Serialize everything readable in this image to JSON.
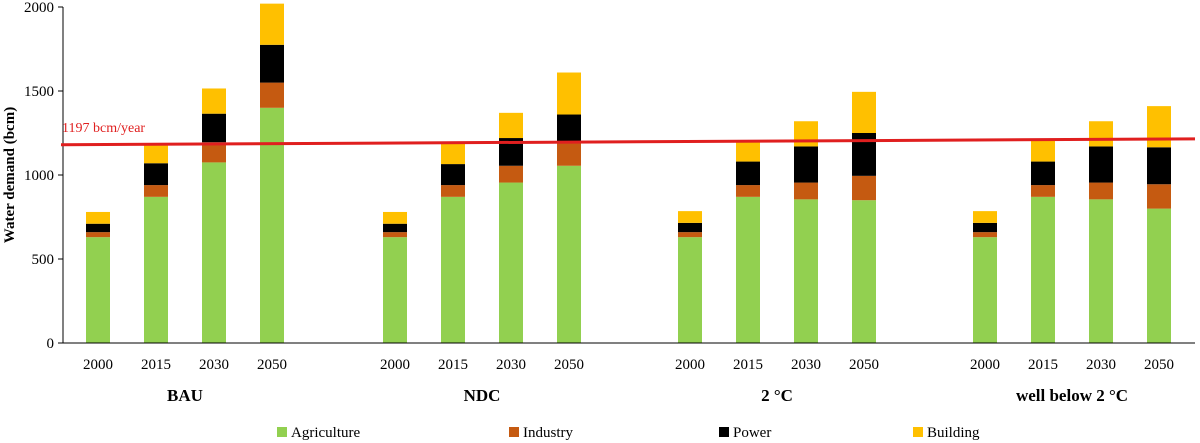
{
  "chart_data": {
    "type": "bar",
    "stacked": true,
    "ylabel": "Water demand (bcm)",
    "ylim": [
      0,
      2000
    ],
    "yticks": [
      0,
      500,
      1000,
      1500,
      2000
    ],
    "grid": false,
    "legend_position": "bottom",
    "groups": [
      {
        "label": "BAU",
        "categories": [
          "2000",
          "2015",
          "2030",
          "2050"
        ]
      },
      {
        "label": "NDC",
        "categories": [
          "2000",
          "2015",
          "2030",
          "2050"
        ]
      },
      {
        "label": "2 °C",
        "categories": [
          "2000",
          "2015",
          "2030",
          "2050"
        ]
      },
      {
        "label": "well below 2 °C",
        "categories": [
          "2000",
          "2015",
          "2030",
          "2050"
        ]
      }
    ],
    "series": [
      {
        "name": "Agriculture",
        "color": "#92d050",
        "values": [
          630,
          870,
          1075,
          1400,
          630,
          870,
          955,
          1055,
          630,
          870,
          855,
          850,
          630,
          870,
          855,
          800
        ]
      },
      {
        "name": "Industry",
        "color": "#c55a11",
        "values": [
          30,
          70,
          120,
          150,
          30,
          70,
          100,
          140,
          30,
          70,
          100,
          145,
          30,
          70,
          100,
          145
        ]
      },
      {
        "name": "Power",
        "color": "#000000",
        "values": [
          50,
          130,
          170,
          225,
          50,
          125,
          165,
          165,
          55,
          140,
          215,
          255,
          55,
          140,
          215,
          220
        ]
      },
      {
        "name": "Building",
        "color": "#ffc000",
        "values": [
          70,
          110,
          150,
          245,
          70,
          125,
          150,
          250,
          70,
          125,
          150,
          245,
          70,
          125,
          150,
          245
        ]
      }
    ],
    "reference_line": {
      "label": "1197 bcm/year",
      "y_start": 1180,
      "y_end": 1215,
      "color": "#e01f1f"
    }
  }
}
